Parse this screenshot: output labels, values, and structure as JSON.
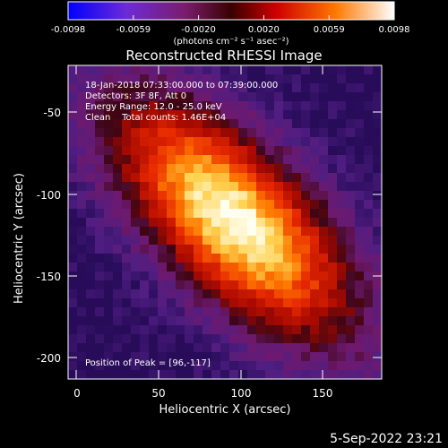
{
  "colorbar": {
    "ticks": [
      "-0.0098",
      "-0.0059",
      "-0.0020",
      "0.0020",
      "0.0059",
      "0.0098"
    ],
    "unit_label": "(photons cm⁻² s⁻¹ asec⁻²)",
    "colors": [
      "#0000ff",
      "#6d2bd6",
      "#7a1c6c",
      "#3a0000",
      "#d00000",
      "#ff7800",
      "#ffffff"
    ]
  },
  "title": "Reconstructed RHESSI Image",
  "annotation": {
    "time_range": "18-Jan-2018 07:33:00.000 to 07:39:00.000",
    "detectors": "Detectors: 3F 8F, Att 0",
    "energy": "Energy Range: 12.0 - 25.0 keV",
    "clean": "Clean    Total counts: 1.46E+04",
    "peak": "Position of Peak = [96,-117]"
  },
  "axes": {
    "x_label": "Heliocentric X (arcsec)",
    "y_label": "Heliocentric Y (arcsec)",
    "x_ticks": [
      "0",
      "50",
      "100",
      "150"
    ],
    "y_ticks": [
      "-50",
      "-100",
      "-150",
      "-200"
    ]
  },
  "footer_date": "5-Sep-2022 23:21",
  "image": {
    "peak_x": 96,
    "peak_y": -117,
    "x_range": [
      -5,
      187
    ],
    "y_range": [
      -213,
      -25
    ]
  }
}
